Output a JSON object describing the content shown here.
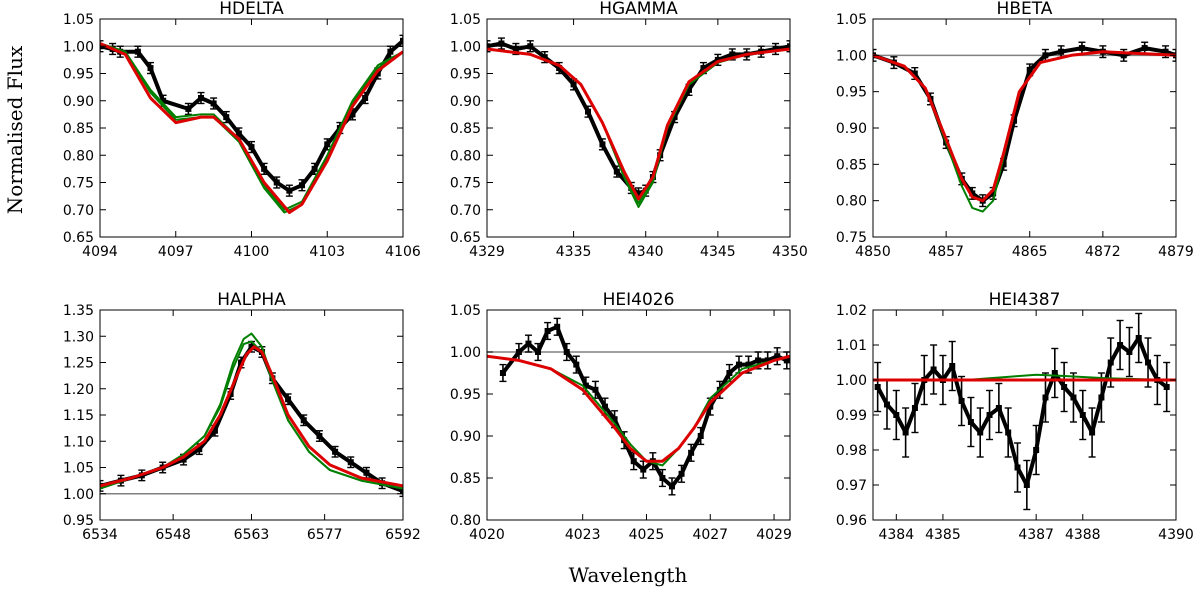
{
  "figure": {
    "ylabel": "Normalised Flux",
    "xlabel": "Wavelength",
    "colors": {
      "data": "#000000",
      "model_red": "#dd0000",
      "model_green": "#007f00",
      "reference": "#808080"
    }
  },
  "chart_data": [
    {
      "type": "line",
      "title": "HDELTA",
      "xlim": [
        4094,
        4106
      ],
      "ylim": [
        0.65,
        1.05
      ],
      "xticks": [
        "4094",
        "4097",
        "4100",
        "4103",
        "4106"
      ],
      "yticks": [
        "0.65",
        "0.70",
        "0.75",
        "0.80",
        "0.85",
        "0.90",
        "0.95",
        "1.00",
        "1.05"
      ],
      "reference_y": 1.0,
      "observed": {
        "x": [
          4094.0,
          4094.5,
          4094.8,
          4095.5,
          4096.0,
          4096.5,
          4097.5,
          4098.0,
          4098.5,
          4099.0,
          4099.5,
          4100.0,
          4100.5,
          4101.0,
          4101.5,
          4102.0,
          4102.5,
          4103.0,
          4103.5,
          4104.0,
          4104.5,
          4105.0,
          4105.5,
          4106.0
        ],
        "y": [
          1.0,
          0.995,
          0.99,
          0.99,
          0.96,
          0.9,
          0.885,
          0.905,
          0.895,
          0.87,
          0.84,
          0.815,
          0.775,
          0.75,
          0.735,
          0.745,
          0.775,
          0.82,
          0.85,
          0.875,
          0.905,
          0.95,
          0.99,
          1.01
        ],
        "err": 0.01
      },
      "models_green": [
        {
          "x": [
            4094.0,
            4095.0,
            4096.0,
            4097.0,
            4098.0,
            4098.5,
            4099.5,
            4100.5,
            4101.3,
            4102.0,
            4103.0,
            4104.0,
            4105.0,
            4106.0
          ],
          "y": [
            1.005,
            0.99,
            0.92,
            0.87,
            0.875,
            0.875,
            0.83,
            0.745,
            0.7,
            0.715,
            0.8,
            0.9,
            0.965,
            0.99
          ]
        },
        {
          "x": [
            4094.0,
            4095.0,
            4096.0,
            4097.0,
            4098.0,
            4098.5,
            4099.5,
            4100.5,
            4101.3,
            4102.0,
            4103.0,
            4104.0,
            4105.0,
            4106.0
          ],
          "y": [
            1.005,
            0.99,
            0.915,
            0.865,
            0.87,
            0.87,
            0.825,
            0.74,
            0.695,
            0.71,
            0.795,
            0.895,
            0.96,
            0.99
          ]
        }
      ],
      "model_red": {
        "x": [
          4094.0,
          4095.0,
          4096.0,
          4097.0,
          4098.0,
          4098.5,
          4099.5,
          4100.5,
          4101.5,
          4102.0,
          4103.0,
          4104.0,
          4105.0,
          4106.0
        ],
        "y": [
          1.005,
          0.985,
          0.905,
          0.86,
          0.87,
          0.87,
          0.83,
          0.75,
          0.695,
          0.71,
          0.79,
          0.89,
          0.955,
          0.99
        ]
      }
    },
    {
      "type": "line",
      "title": "HGAMMA",
      "xlim": [
        4329,
        4350
      ],
      "ylim": [
        0.65,
        1.05
      ],
      "xticks": [
        "4329",
        "4335",
        "4340",
        "4345",
        "4350"
      ],
      "yticks": [
        "0.65",
        "0.70",
        "0.75",
        "0.80",
        "0.85",
        "0.90",
        "0.95",
        "1.00",
        "1.05"
      ],
      "reference_y": 1.0,
      "observed": {
        "x": [
          4329.0,
          4330.0,
          4331.0,
          4332.0,
          4333.0,
          4334.0,
          4335.0,
          4336.0,
          4337.0,
          4338.0,
          4339.0,
          4339.5,
          4340.0,
          4340.5,
          4341.0,
          4342.0,
          4343.0,
          4344.0,
          4345.0,
          4346.0,
          4347.0,
          4348.0,
          4349.0,
          4350.0
        ],
        "y": [
          1.0,
          1.005,
          0.995,
          1.0,
          0.98,
          0.96,
          0.93,
          0.88,
          0.82,
          0.77,
          0.74,
          0.73,
          0.735,
          0.76,
          0.8,
          0.87,
          0.92,
          0.96,
          0.975,
          0.985,
          0.985,
          0.99,
          0.995,
          1.0
        ],
        "err": 0.01
      },
      "models_green": [
        {
          "x": [
            4329.0,
            4332.0,
            4334.0,
            4335.5,
            4337.0,
            4338.5,
            4339.5,
            4340.5,
            4341.5,
            4343.0,
            4345.0,
            4347.0,
            4350.0
          ],
          "y": [
            0.995,
            0.985,
            0.965,
            0.93,
            0.86,
            0.76,
            0.705,
            0.75,
            0.85,
            0.93,
            0.97,
            0.985,
            0.995
          ]
        },
        {
          "x": [
            4329.0,
            4332.0,
            4334.0,
            4335.5,
            4337.0,
            4338.5,
            4339.5,
            4340.5,
            4341.5,
            4343.0,
            4345.0,
            4347.0,
            4350.0
          ],
          "y": [
            0.995,
            0.985,
            0.965,
            0.93,
            0.86,
            0.765,
            0.712,
            0.755,
            0.85,
            0.93,
            0.97,
            0.985,
            0.995
          ]
        }
      ],
      "model_red": {
        "x": [
          4329.0,
          4332.0,
          4334.0,
          4335.5,
          4337.0,
          4338.5,
          4339.5,
          4340.5,
          4341.5,
          4343.0,
          4345.0,
          4347.0,
          4350.0
        ],
        "y": [
          0.995,
          0.985,
          0.965,
          0.93,
          0.86,
          0.77,
          0.72,
          0.76,
          0.855,
          0.935,
          0.972,
          0.985,
          0.995
        ]
      }
    },
    {
      "type": "line",
      "title": "HBETA",
      "xlim": [
        4850,
        4879
      ],
      "ylim": [
        0.75,
        1.05
      ],
      "xticks": [
        "4850",
        "4857",
        "4865",
        "4872",
        "4879"
      ],
      "yticks": [
        "0.75",
        "0.80",
        "0.85",
        "0.90",
        "0.95",
        "1.00",
        "1.05"
      ],
      "reference_y": 1.0,
      "observed": {
        "x": [
          4850.0,
          4852.0,
          4854.0,
          4855.5,
          4857.0,
          4858.5,
          4859.5,
          4860.5,
          4861.5,
          4862.5,
          4863.5,
          4865.0,
          4866.5,
          4868.0,
          4870.0,
          4872.0,
          4874.0,
          4876.0,
          4878.0,
          4879.0
        ],
        "y": [
          1.0,
          0.99,
          0.975,
          0.94,
          0.88,
          0.83,
          0.81,
          0.8,
          0.81,
          0.85,
          0.91,
          0.98,
          1.0,
          1.005,
          1.01,
          1.005,
          1.0,
          1.01,
          1.005,
          1.0
        ],
        "err": 0.008
      },
      "models_green": [
        {
          "x": [
            4850.0,
            4853.0,
            4855.0,
            4857.0,
            4858.5,
            4859.5,
            4860.5,
            4861.5,
            4862.5,
            4864.0,
            4866.0,
            4869.0,
            4872.0,
            4879.0
          ],
          "y": [
            1.0,
            0.985,
            0.955,
            0.88,
            0.82,
            0.79,
            0.785,
            0.8,
            0.86,
            0.95,
            0.99,
            1.0,
            1.005,
            1.0
          ]
        }
      ],
      "model_red": {
        "x": [
          4850.0,
          4853.0,
          4855.0,
          4857.0,
          4858.5,
          4859.5,
          4860.5,
          4861.5,
          4862.5,
          4864.0,
          4866.0,
          4869.0,
          4872.0,
          4879.0
        ],
        "y": [
          1.0,
          0.985,
          0.955,
          0.885,
          0.83,
          0.805,
          0.8,
          0.815,
          0.865,
          0.95,
          0.99,
          1.0,
          1.005,
          1.0
        ]
      }
    },
    {
      "type": "line",
      "title": "HALPHA",
      "xlim": [
        6534,
        6592
      ],
      "ylim": [
        0.95,
        1.35
      ],
      "xticks": [
        "6534",
        "6548",
        "6563",
        "6577",
        "6592"
      ],
      "yticks": [
        "0.95",
        "1.00",
        "1.05",
        "1.10",
        "1.15",
        "1.20",
        "1.25",
        "1.30",
        "1.35"
      ],
      "reference_y": 1.0,
      "observed": {
        "x": [
          6534.0,
          6538.0,
          6542.0,
          6546.0,
          6550.0,
          6553.0,
          6556.0,
          6559.0,
          6561.0,
          6563.0,
          6565.0,
          6567.0,
          6570.0,
          6573.0,
          6576.0,
          6579.0,
          6582.0,
          6585.0,
          6588.0,
          6592.0
        ],
        "y": [
          1.015,
          1.025,
          1.035,
          1.05,
          1.065,
          1.085,
          1.12,
          1.19,
          1.25,
          1.28,
          1.27,
          1.22,
          1.18,
          1.14,
          1.11,
          1.08,
          1.06,
          1.04,
          1.02,
          1.005
        ],
        "err": 0.01
      },
      "models_green": [
        {
          "x": [
            6534.0,
            6540.0,
            6546.0,
            6550.0,
            6554.0,
            6557.0,
            6559.5,
            6561.5,
            6563.0,
            6565.0,
            6567.0,
            6570.0,
            6574.0,
            6578.0,
            6584.0,
            6592.0
          ],
          "y": [
            1.01,
            1.03,
            1.05,
            1.075,
            1.11,
            1.17,
            1.25,
            1.295,
            1.305,
            1.28,
            1.22,
            1.14,
            1.08,
            1.045,
            1.025,
            1.01
          ]
        },
        {
          "x": [
            6534.0,
            6540.0,
            6546.0,
            6550.0,
            6554.0,
            6557.0,
            6559.5,
            6561.5,
            6563.0,
            6565.0,
            6567.0,
            6570.0,
            6574.0,
            6578.0,
            6584.0,
            6592.0
          ],
          "y": [
            1.01,
            1.03,
            1.05,
            1.075,
            1.11,
            1.165,
            1.24,
            1.285,
            1.29,
            1.27,
            1.215,
            1.14,
            1.08,
            1.045,
            1.025,
            1.01
          ]
        }
      ],
      "model_red": {
        "x": [
          6534.0,
          6540.0,
          6546.0,
          6550.0,
          6554.0,
          6557.0,
          6560.0,
          6562.0,
          6563.5,
          6565.0,
          6567.0,
          6570.0,
          6574.0,
          6578.0,
          6584.0,
          6592.0
        ],
        "y": [
          1.015,
          1.03,
          1.05,
          1.07,
          1.1,
          1.15,
          1.22,
          1.265,
          1.28,
          1.27,
          1.225,
          1.15,
          1.09,
          1.055,
          1.03,
          1.015
        ]
      }
    },
    {
      "type": "line",
      "title": "HEI4026",
      "xlim": [
        4020,
        4029.5
      ],
      "ylim": [
        0.8,
        1.05
      ],
      "xticks": [
        "4020",
        "4023",
        "4025",
        "4027",
        "4029"
      ],
      "yticks": [
        "0.80",
        "0.85",
        "0.90",
        "0.95",
        "1.00",
        "1.05"
      ],
      "reference_y": 1.0,
      "observed": {
        "x": [
          4020.5,
          4021.0,
          4021.3,
          4021.6,
          4021.9,
          4022.2,
          4022.5,
          4022.8,
          4023.1,
          4023.4,
          4023.7,
          4024.0,
          4024.3,
          4024.6,
          4024.9,
          4025.2,
          4025.5,
          4025.8,
          4026.1,
          4026.4,
          4026.7,
          4027.0,
          4027.3,
          4027.6,
          4027.9,
          4028.2,
          4028.5,
          4028.8,
          4029.1,
          4029.4
        ],
        "y": [
          0.975,
          1.0,
          1.01,
          1.0,
          1.025,
          1.03,
          1.0,
          0.985,
          0.96,
          0.955,
          0.935,
          0.92,
          0.895,
          0.87,
          0.86,
          0.87,
          0.85,
          0.84,
          0.855,
          0.88,
          0.9,
          0.935,
          0.955,
          0.975,
          0.985,
          0.985,
          0.99,
          0.99,
          0.995,
          0.99
        ],
        "err": 0.01
      },
      "models_green": [
        {
          "x": [
            4020.0,
            4021.0,
            4022.0,
            4023.0,
            4024.0,
            4024.5,
            4025.0,
            4025.5,
            4026.0,
            4026.5,
            4027.0,
            4028.0,
            4029.0,
            4029.5
          ],
          "y": [
            0.995,
            0.99,
            0.98,
            0.96,
            0.915,
            0.89,
            0.87,
            0.865,
            0.885,
            0.91,
            0.945,
            0.98,
            0.99,
            0.995
          ]
        }
      ],
      "model_red": {
        "x": [
          4020.0,
          4021.0,
          4022.0,
          4023.0,
          4024.0,
          4024.5,
          4025.0,
          4025.5,
          4026.0,
          4026.5,
          4027.0,
          4028.0,
          4029.0,
          4029.5
        ],
        "y": [
          0.995,
          0.99,
          0.98,
          0.955,
          0.91,
          0.885,
          0.87,
          0.87,
          0.885,
          0.91,
          0.94,
          0.975,
          0.99,
          0.995
        ]
      }
    },
    {
      "type": "line",
      "title": "HEI4387",
      "xlim": [
        4383.5,
        4390
      ],
      "ylim": [
        0.96,
        1.02
      ],
      "xticks": [
        "4384",
        "4385",
        "4387",
        "4388",
        "4390"
      ],
      "xtick_values": [
        4384,
        4385,
        4387,
        4388,
        4390
      ],
      "yticks": [
        "0.96",
        "0.97",
        "0.98",
        "0.99",
        "1.00",
        "1.01",
        "1.02"
      ],
      "reference_y": 1.0,
      "observed": {
        "x": [
          4383.6,
          4383.8,
          4384.0,
          4384.2,
          4384.4,
          4384.6,
          4384.8,
          4385.0,
          4385.2,
          4385.4,
          4385.6,
          4385.8,
          4386.0,
          4386.2,
          4386.4,
          4386.6,
          4386.8,
          4387.0,
          4387.2,
          4387.4,
          4387.6,
          4387.8,
          4388.0,
          4388.2,
          4388.4,
          4388.6,
          4388.8,
          4389.0,
          4389.2,
          4389.4,
          4389.6,
          4389.8
        ],
        "y": [
          0.998,
          0.993,
          0.99,
          0.985,
          0.992,
          1.0,
          1.003,
          1.0,
          1.004,
          0.994,
          0.988,
          0.985,
          0.99,
          0.992,
          0.985,
          0.975,
          0.97,
          0.98,
          0.995,
          1.002,
          0.998,
          0.995,
          0.99,
          0.985,
          0.995,
          1.005,
          1.01,
          1.008,
          1.012,
          1.005,
          1.0,
          0.998
        ],
        "err": 0.007
      },
      "models_green": [
        {
          "x": [
            4383.5,
            4385.5,
            4386.5,
            4387.0,
            4387.5,
            4388.5,
            4390.0
          ],
          "y": [
            1.0,
            1.0,
            1.001,
            1.0015,
            1.0012,
            1.0005,
            1.0
          ]
        }
      ],
      "model_red": {
        "x": [
          4383.5,
          4390.0
        ],
        "y": [
          1.0,
          1.0
        ]
      }
    }
  ]
}
